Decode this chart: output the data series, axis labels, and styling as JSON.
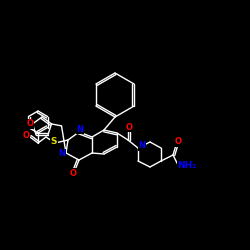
{
  "bg_color": "#000000",
  "bond_color": "#ffffff",
  "atom_colors": {
    "O": "#ff0000",
    "N": "#0000ff",
    "S": "#dddd00",
    "C": "#ffffff"
  },
  "font_size_atom": 6.5,
  "fig_size": [
    2.5,
    2.5
  ],
  "dpi": 100
}
